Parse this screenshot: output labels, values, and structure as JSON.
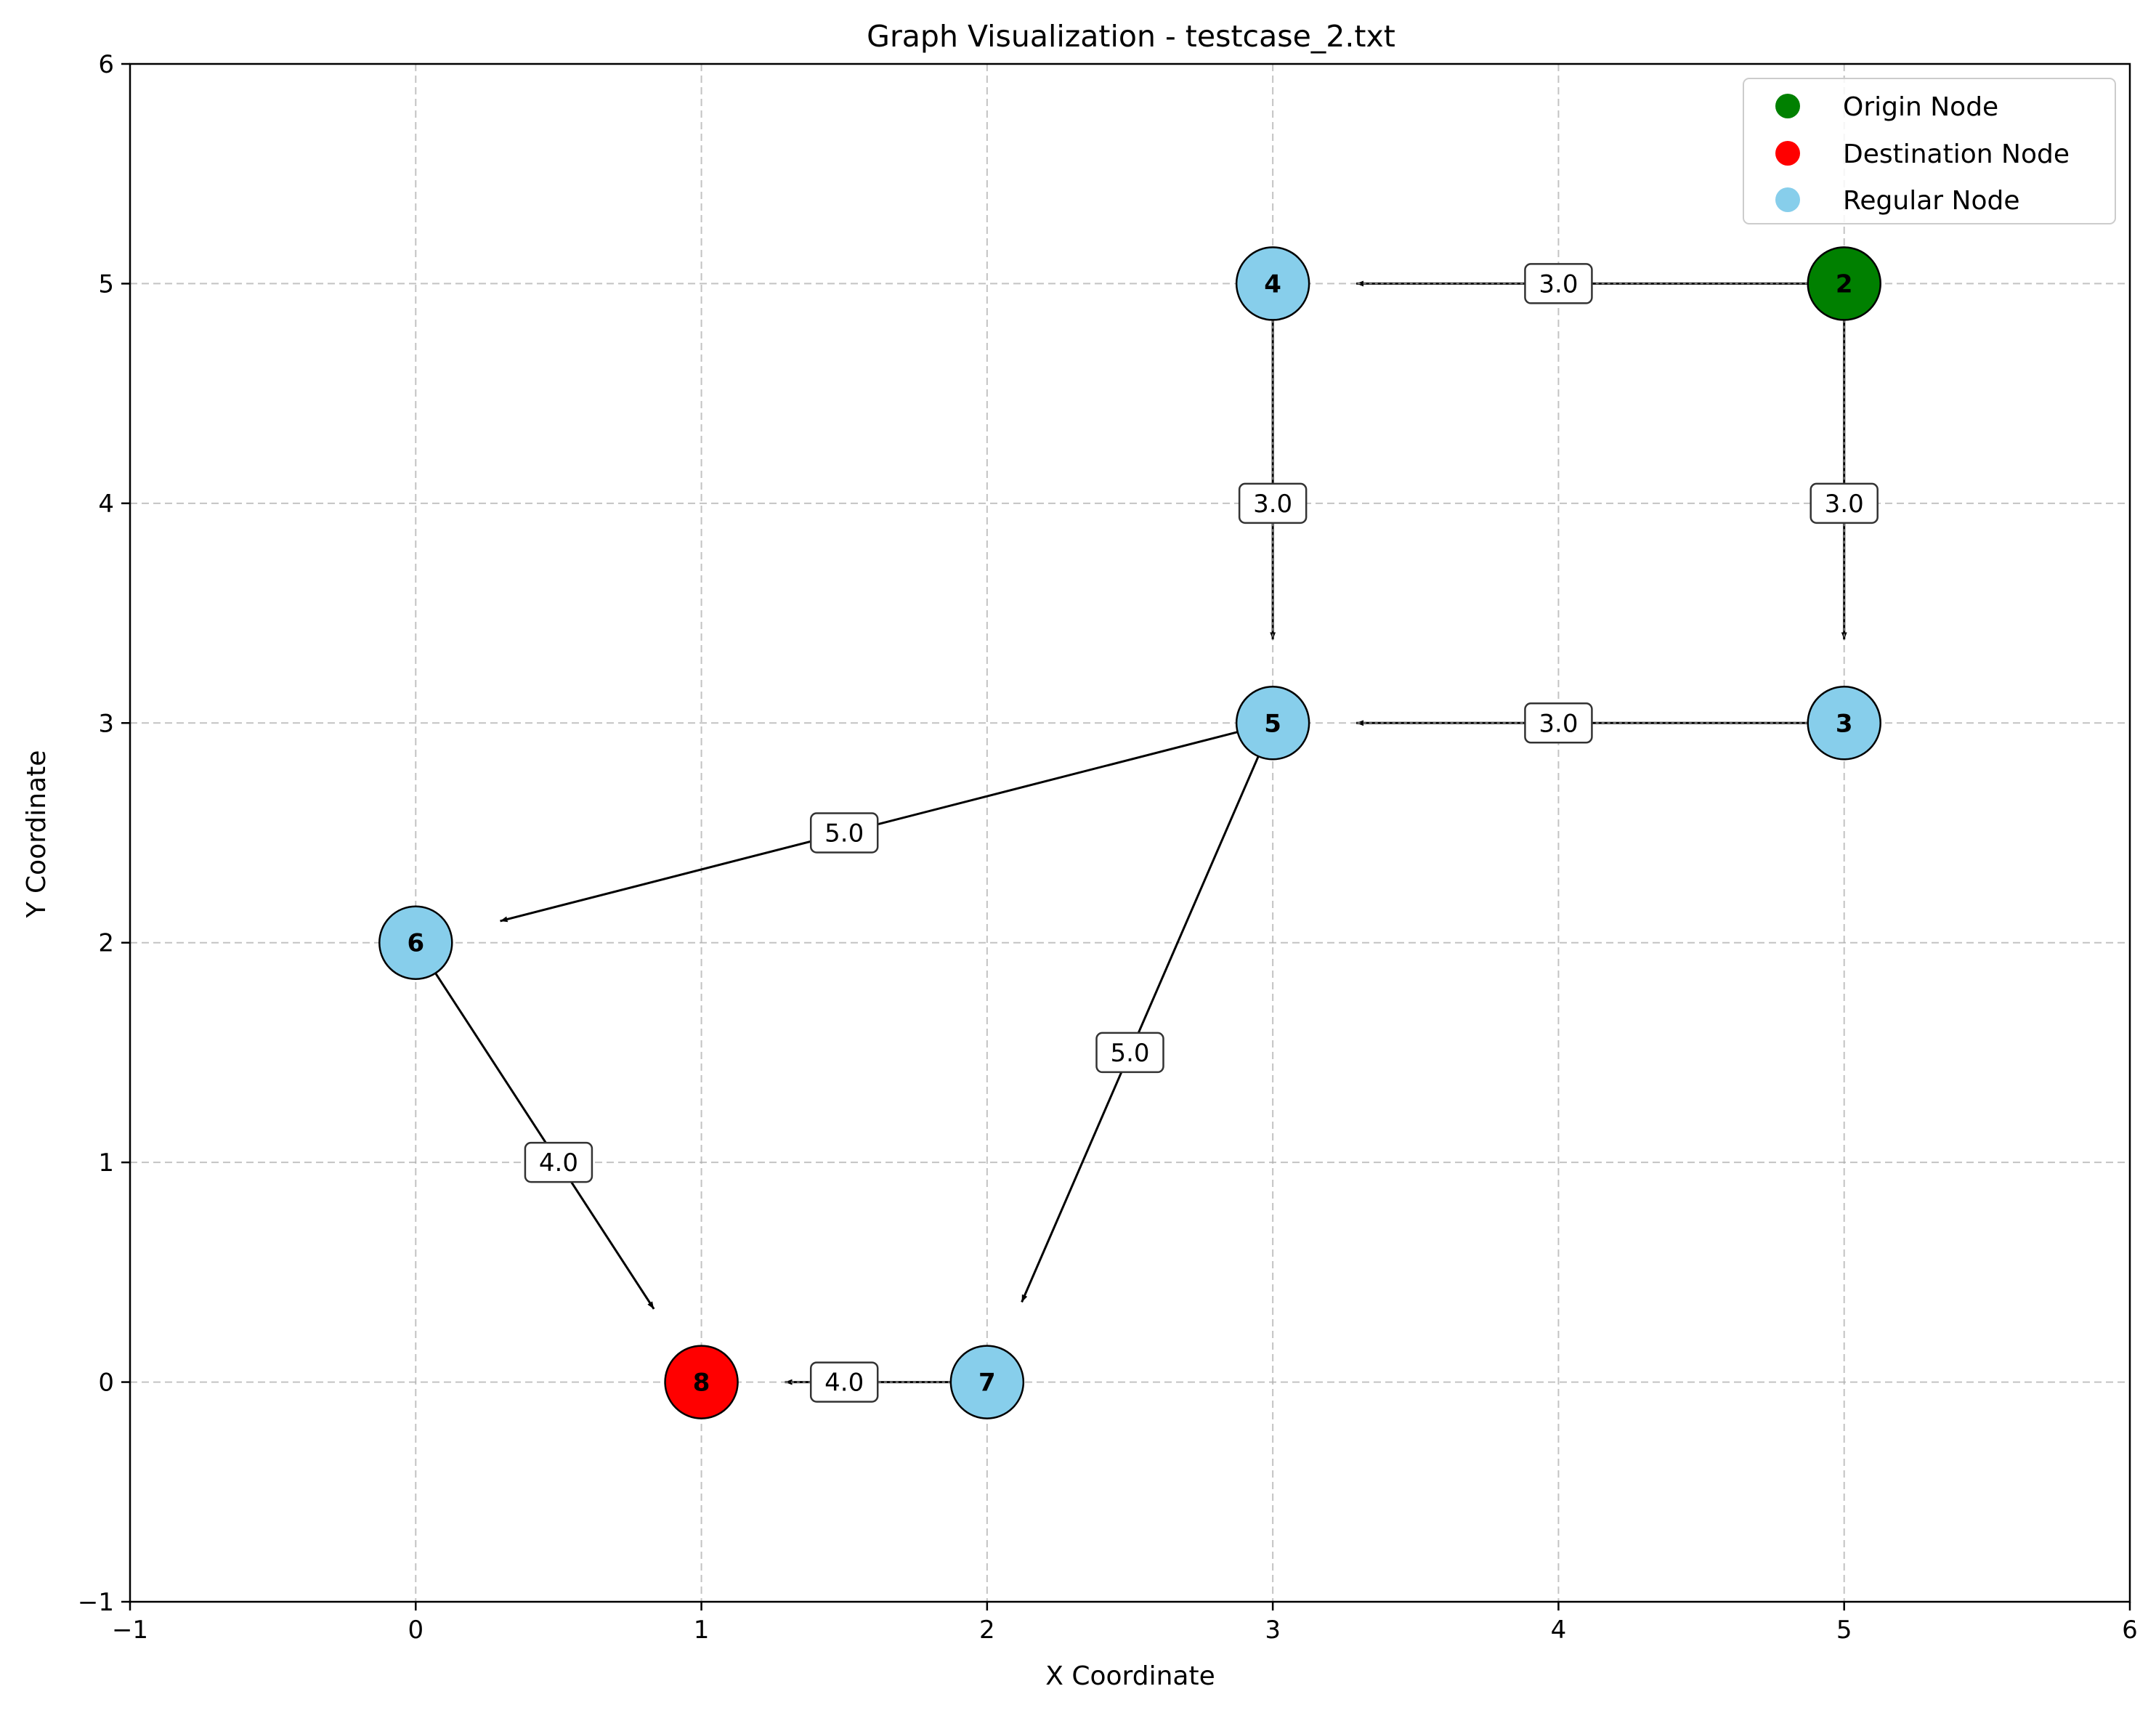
{
  "chart_data": {
    "type": "scatter",
    "title": "Graph Visualization - testcase_2.txt",
    "xlabel": "X Coordinate",
    "ylabel": "Y Coordinate",
    "xlim": [
      -1,
      6
    ],
    "ylim": [
      -1,
      6
    ],
    "xticks": [
      -1,
      0,
      1,
      2,
      3,
      4,
      5,
      6
    ],
    "yticks": [
      -1,
      0,
      1,
      2,
      3,
      4,
      5,
      6
    ],
    "grid": true,
    "legend_position": "top-right",
    "legend": [
      {
        "label": "Origin Node",
        "color": "#008000"
      },
      {
        "label": "Destination Node",
        "color": "#ff0000"
      },
      {
        "label": "Regular Node",
        "color": "#87ceeb"
      }
    ],
    "nodes": [
      {
        "id": "2",
        "x": 5,
        "y": 5,
        "role": "origin",
        "color": "#008000"
      },
      {
        "id": "3",
        "x": 5,
        "y": 3,
        "role": "regular",
        "color": "#87ceeb"
      },
      {
        "id": "4",
        "x": 3,
        "y": 5,
        "role": "regular",
        "color": "#87ceeb"
      },
      {
        "id": "5",
        "x": 3,
        "y": 3,
        "role": "regular",
        "color": "#87ceeb"
      },
      {
        "id": "6",
        "x": 0,
        "y": 2,
        "role": "regular",
        "color": "#87ceeb"
      },
      {
        "id": "7",
        "x": 2,
        "y": 0,
        "role": "regular",
        "color": "#87ceeb"
      },
      {
        "id": "8",
        "x": 1,
        "y": 0,
        "role": "destination",
        "color": "#ff0000"
      }
    ],
    "edges": [
      {
        "from": "2",
        "to": "4",
        "weight": "3.0"
      },
      {
        "from": "2",
        "to": "3",
        "weight": "3.0"
      },
      {
        "from": "4",
        "to": "5",
        "weight": "3.0"
      },
      {
        "from": "3",
        "to": "5",
        "weight": "3.0"
      },
      {
        "from": "5",
        "to": "6",
        "weight": "5.0"
      },
      {
        "from": "5",
        "to": "7",
        "weight": "5.0"
      },
      {
        "from": "6",
        "to": "8",
        "weight": "4.0"
      },
      {
        "from": "7",
        "to": "8",
        "weight": "4.0"
      }
    ]
  }
}
